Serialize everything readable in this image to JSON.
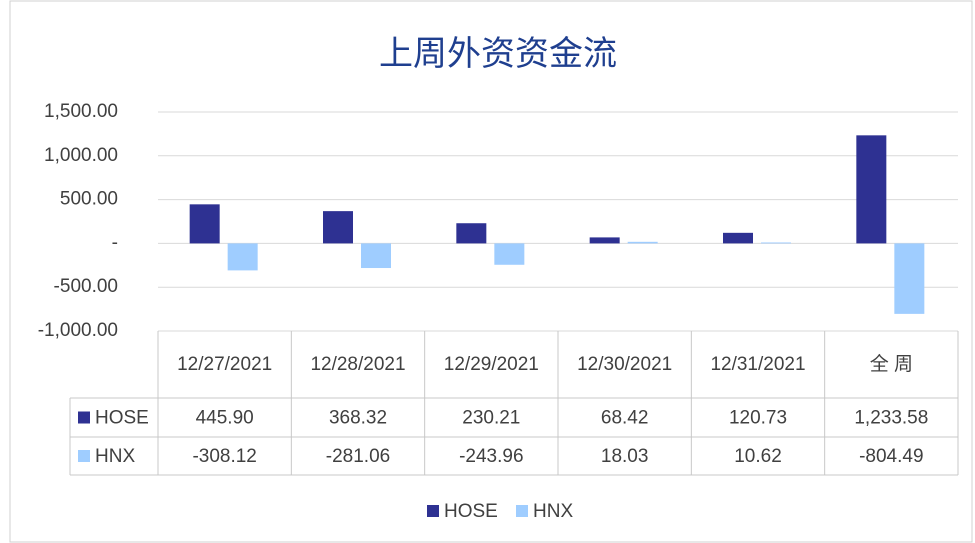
{
  "chart_data": {
    "type": "bar",
    "title": "上周外资资金流",
    "categories": [
      "12/27/2021",
      "12/28/2021",
      "12/29/2021",
      "12/30/2021",
      "12/31/2021",
      "全 周"
    ],
    "series": [
      {
        "name": "HOSE",
        "color": "#2e3192",
        "values": [
          445.9,
          368.32,
          230.21,
          68.42,
          120.73,
          1233.58
        ],
        "value_labels": [
          "445.90",
          "368.32",
          "230.21",
          "68.42",
          "120.73",
          "1,233.58"
        ]
      },
      {
        "name": "HNX",
        "color": "#9fcdff",
        "values": [
          -308.12,
          -281.06,
          -243.96,
          18.03,
          10.62,
          -804.49
        ],
        "value_labels": [
          "-308.12",
          "-281.06",
          "-243.96",
          "18.03",
          "10.62",
          "-804.49"
        ]
      }
    ],
    "ylim": [
      -1000,
      1500
    ],
    "yticks": [
      {
        "value": -1000,
        "label": "-1,000.00"
      },
      {
        "value": -500,
        "label": "-500.00"
      },
      {
        "value": 0,
        "label": "-"
      },
      {
        "value": 500,
        "label": "500.00"
      },
      {
        "value": 1000,
        "label": "1,000.00"
      },
      {
        "value": 1500,
        "label": "1,500.00"
      }
    ],
    "grid": true,
    "legend": "bottom"
  }
}
